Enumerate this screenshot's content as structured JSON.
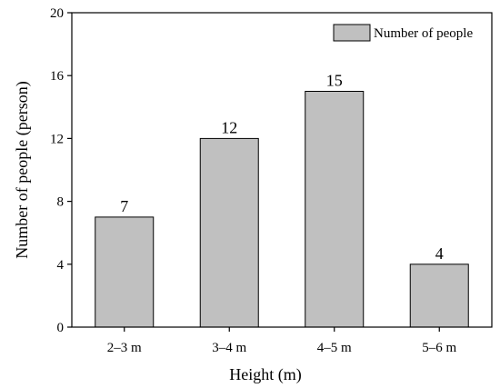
{
  "chart_data": {
    "type": "bar",
    "categories": [
      "2–3 m",
      "3–4 m",
      "4–5 m",
      "5–6 m"
    ],
    "series": [
      {
        "name": "Number of people",
        "values": [
          7,
          12,
          15,
          4
        ]
      }
    ],
    "data_labels": [
      "7",
      "12",
      "15",
      "4"
    ],
    "xlabel": "Height (m)",
    "ylabel": "Number of people (person)",
    "ylim": [
      0,
      20
    ],
    "yticks": [
      0,
      4,
      8,
      12,
      16,
      20
    ],
    "grid": false,
    "legend_position": "top-right",
    "colors": {
      "bar_fill": "#c0c0c0",
      "bar_stroke": "#000000",
      "axis": "#000000"
    }
  }
}
